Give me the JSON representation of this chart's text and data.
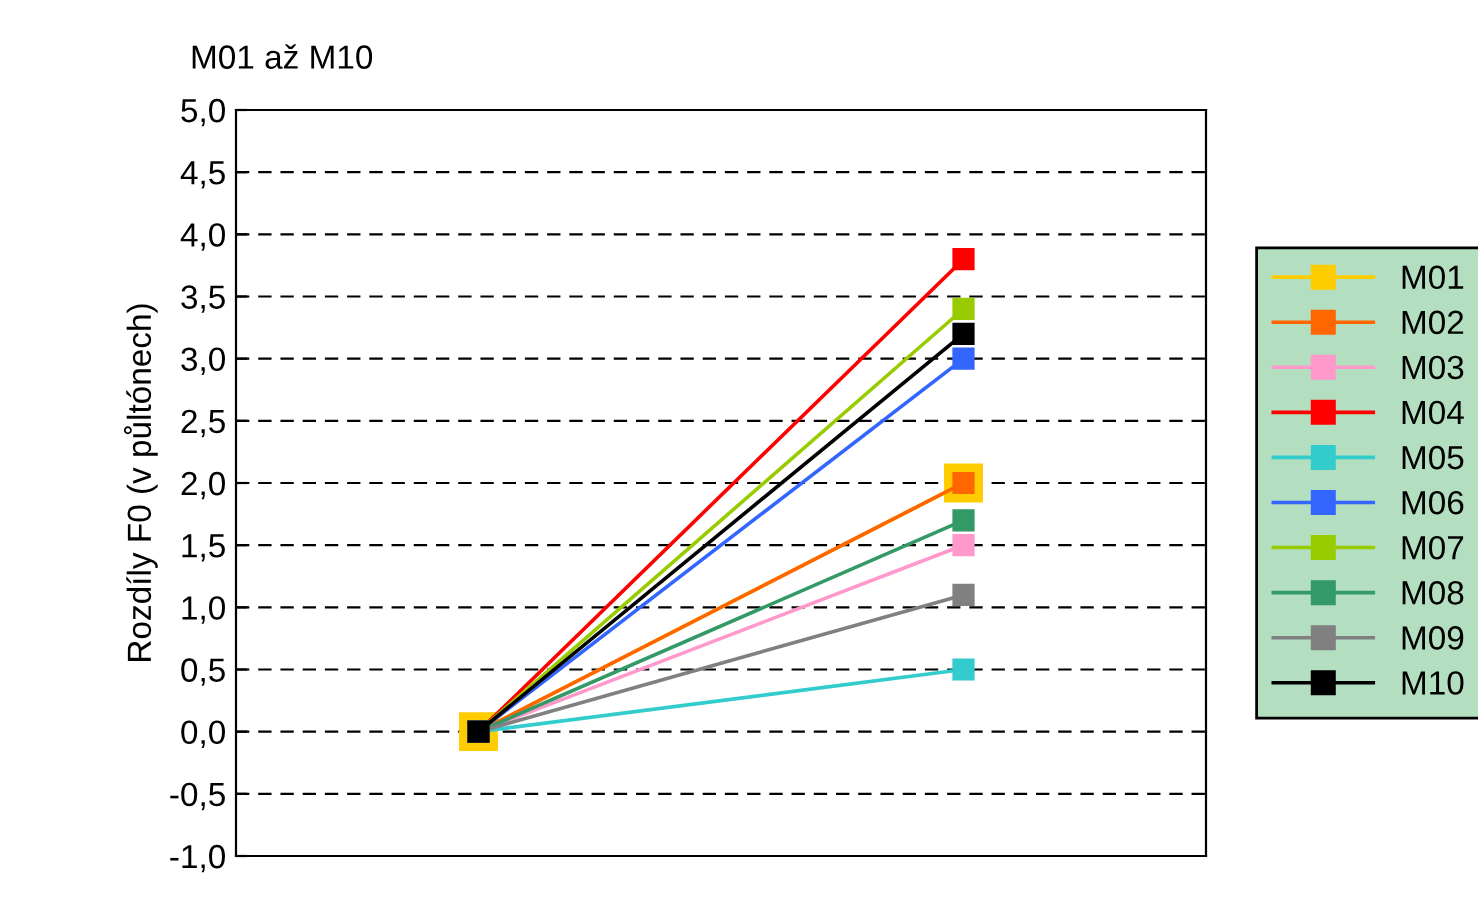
{
  "chart_data": {
    "type": "line",
    "title": "M01 až M10",
    "ylabel": "Rozdíly F0 (v půltónech)",
    "categories": [
      null,
      null
    ],
    "series": [
      {
        "name": "M01",
        "color": "#ffcc00",
        "values": [
          0,
          2.0
        ]
      },
      {
        "name": "M02",
        "color": "#ff6600",
        "values": [
          0,
          2.0
        ]
      },
      {
        "name": "M03",
        "color": "#ff99cc",
        "values": [
          0,
          1.5
        ]
      },
      {
        "name": "M04",
        "color": "#ff0000",
        "values": [
          0,
          3.8
        ]
      },
      {
        "name": "M05",
        "color": "#33cccc",
        "values": [
          0,
          0.5
        ]
      },
      {
        "name": "M06",
        "color": "#3366ff",
        "values": [
          0,
          3.0
        ]
      },
      {
        "name": "M07",
        "color": "#99cc00",
        "values": [
          0,
          3.4
        ]
      },
      {
        "name": "M08",
        "color": "#339966",
        "values": [
          0,
          1.7
        ]
      },
      {
        "name": "M09",
        "color": "#808080",
        "values": [
          0,
          1.1
        ]
      },
      {
        "name": "M10",
        "color": "#000000",
        "values": [
          0,
          3.2
        ]
      }
    ],
    "ylim": [
      -1,
      5
    ],
    "yticks": [
      {
        "value": -1,
        "label": "-1,0"
      },
      {
        "value": -0.5,
        "label": "-0,5"
      },
      {
        "value": 0,
        "label": "0,0"
      },
      {
        "value": 0.5,
        "label": "0,5"
      },
      {
        "value": 1,
        "label": "1,0"
      },
      {
        "value": 1.5,
        "label": "1,5"
      },
      {
        "value": 2,
        "label": "2,0"
      },
      {
        "value": 2.5,
        "label": "2,5"
      },
      {
        "value": 3,
        "label": "3,0"
      },
      {
        "value": 3.5,
        "label": "3,5"
      },
      {
        "value": 4,
        "label": "4,0"
      },
      {
        "value": 4.5,
        "label": "4,5"
      },
      {
        "value": 5,
        "label": "5,0"
      }
    ],
    "grid": "y",
    "legend": "right",
    "marker": "square",
    "line_style": "solid"
  }
}
